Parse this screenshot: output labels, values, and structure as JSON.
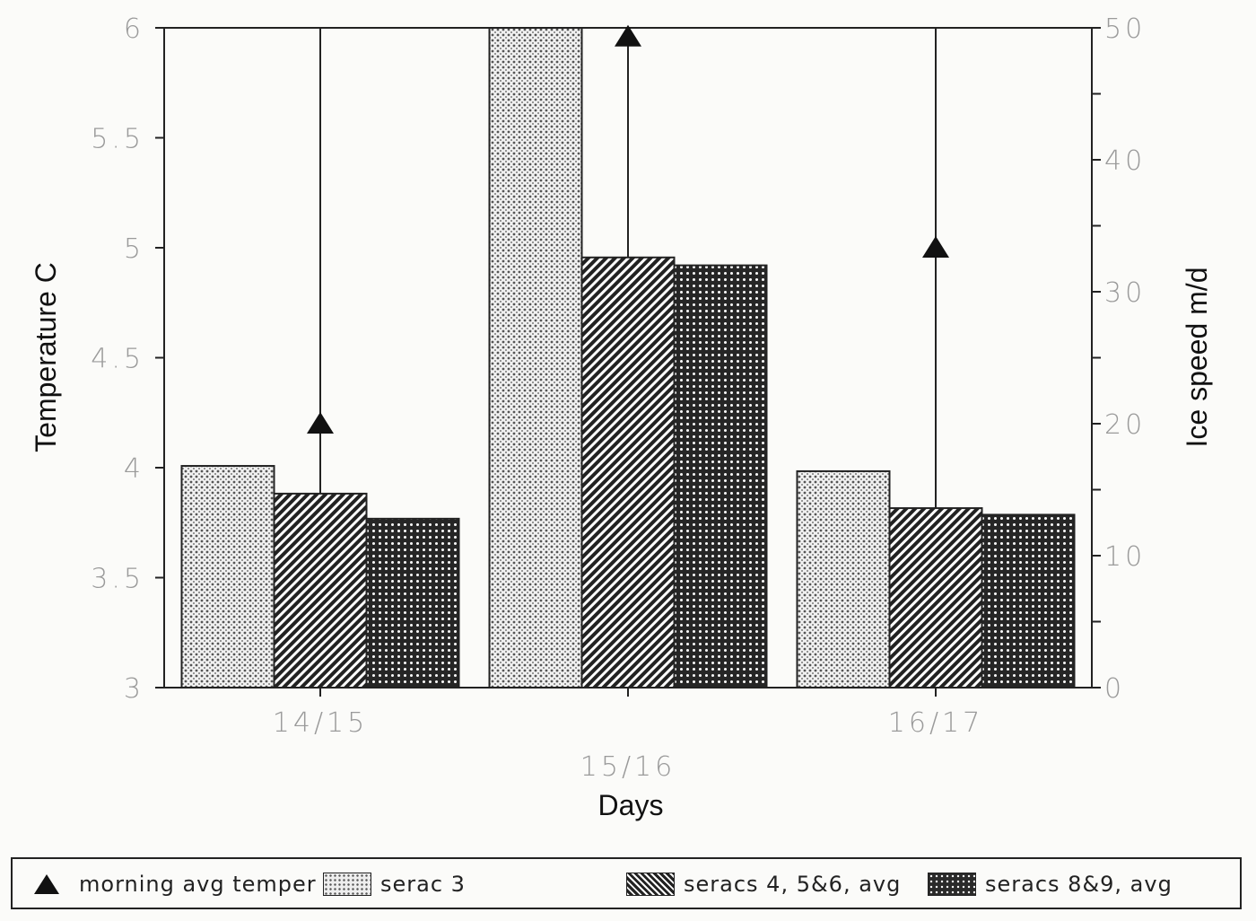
{
  "chart_data": {
    "type": "bar",
    "title": "",
    "xlabel": "Days",
    "ylabel": "Temperature C",
    "y2label": "Ice speed m/d",
    "categories": [
      "14/15",
      "15/16",
      "16/17"
    ],
    "ylim": [
      3,
      6
    ],
    "y2lim": [
      0,
      50
    ],
    "yticks": [
      "3",
      "3.5",
      "4",
      "4.5",
      "5",
      "5.5",
      "6"
    ],
    "y2ticks": [
      "0",
      "10",
      "20",
      "30",
      "40",
      "50"
    ],
    "series": [
      {
        "name": "morning avg temper",
        "type": "scatter",
        "axis": "left",
        "marker": "triangle",
        "values": [
          4.2,
          5.96,
          5.0
        ]
      },
      {
        "name": "serac 3",
        "type": "bar",
        "axis": "right",
        "pattern": "light-crosshatch",
        "values": [
          16.8,
          50,
          16.4
        ]
      },
      {
        "name": "seracs 4, 5&6, avg",
        "type": "bar",
        "axis": "right",
        "pattern": "diagonal-hatch",
        "values": [
          14.7,
          32.6,
          13.6
        ]
      },
      {
        "name": "seracs 8&9, avg",
        "type": "bar",
        "axis": "right",
        "pattern": "dark-dots",
        "values": [
          12.8,
          32.0,
          13.1
        ]
      }
    ],
    "grid": false,
    "legend_position": "bottom",
    "notes": "Triangle markers have vertical lines extending from bar tops to the top of the plot frame."
  },
  "legend": {
    "items": [
      {
        "label": "morning avg temper",
        "icon": "triangle-marker"
      },
      {
        "label": "serac 3",
        "icon": "light-crosshatch-swatch"
      },
      {
        "label": "seracs 4, 5&6, avg",
        "icon": "diagonal-hatch-swatch"
      },
      {
        "label": "seracs 8&9, avg",
        "icon": "dark-dots-swatch"
      }
    ]
  }
}
